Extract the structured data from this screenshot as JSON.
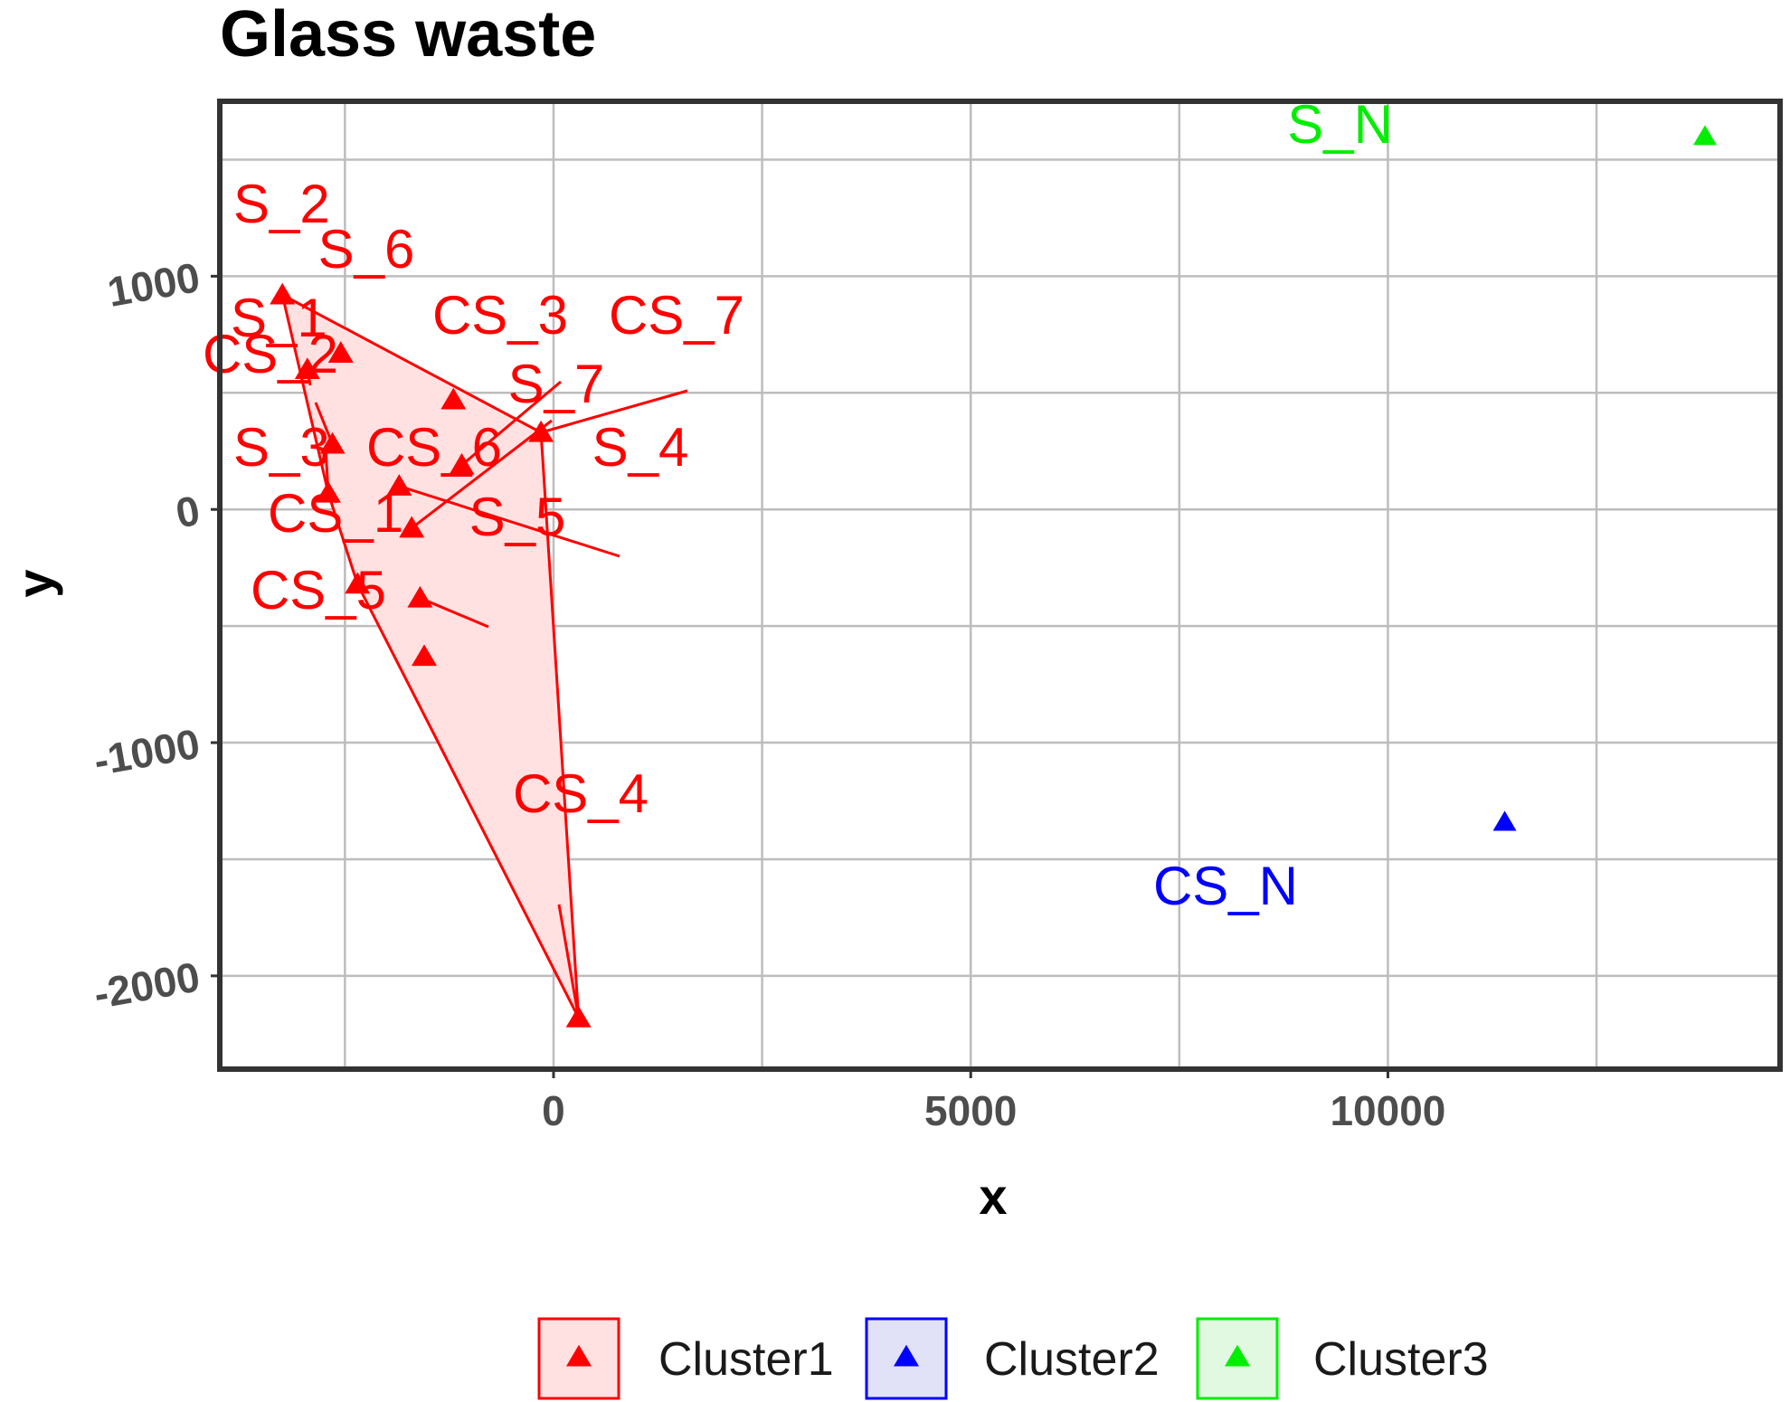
{
  "chart_data": {
    "type": "scatter",
    "title": "Glass waste",
    "xlabel": "x",
    "ylabel": "y",
    "xlim": [
      -4000,
      14700
    ],
    "ylim": [
      -2400,
      1750
    ],
    "x_ticks": [
      0,
      5000,
      10000
    ],
    "y_ticks": [
      -2000,
      -1000,
      0,
      1000
    ],
    "grid": true,
    "hull": "Cluster1",
    "legend_position": "bottom",
    "series": [
      {
        "name": "Cluster1",
        "color": "#ff0000",
        "hull_fill": "#ffe1e1",
        "points": [
          {
            "label": "S_2",
            "x": -3250,
            "y": 920
          },
          {
            "label": "S_6",
            "x": -2550,
            "y": 670
          },
          {
            "label": "S_1",
            "x": -2950,
            "y": 600
          },
          {
            "label": "CS_3",
            "x": -1200,
            "y": 470
          },
          {
            "label": "CS_7",
            "x": -150,
            "y": 330
          },
          {
            "label": "CS_2",
            "x": -2650,
            "y": 280
          },
          {
            "label": "S_7",
            "x": -1100,
            "y": 190
          },
          {
            "label": "S_4",
            "x": -1850,
            "y": 100
          },
          {
            "label": "S_3",
            "x": -2700,
            "y": 70
          },
          {
            "label": "CS_6",
            "x": -1700,
            "y": -80
          },
          {
            "label": "CS_1",
            "x": -2350,
            "y": -320
          },
          {
            "label": "S_5",
            "x": -1600,
            "y": -380
          },
          {
            "label": "CS_5",
            "x": -1550,
            "y": -630
          },
          {
            "label": "CS_4",
            "x": 300,
            "y": -2180
          }
        ]
      },
      {
        "name": "Cluster2",
        "color": "#0000ff",
        "points": [
          {
            "label": "CS_N",
            "x": 11400,
            "y": -1340
          }
        ]
      },
      {
        "name": "Cluster3",
        "color": "#00ee00",
        "points": [
          {
            "label": "S_N",
            "x": 13800,
            "y": 1600
          }
        ]
      }
    ]
  }
}
